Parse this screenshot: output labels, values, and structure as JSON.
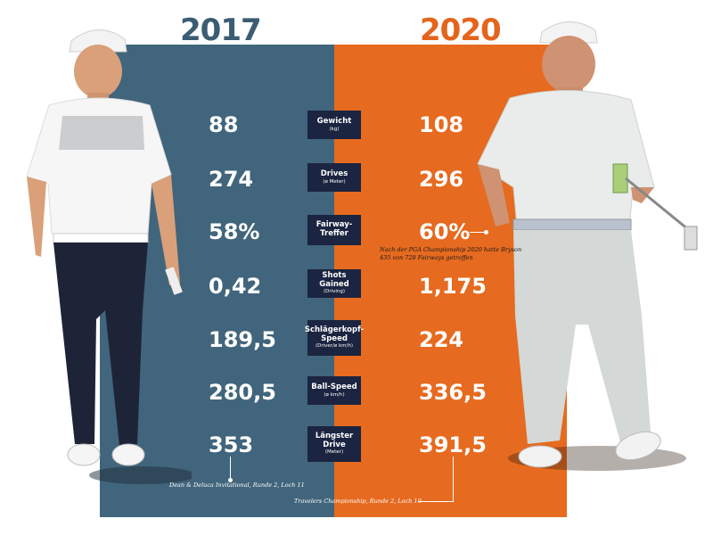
{
  "years": {
    "left": "2017",
    "right": "2020"
  },
  "colors": {
    "left_panel": "#41657c",
    "right_panel": "#e66a1f",
    "label_box": "#1b2440"
  },
  "rows": [
    {
      "label": "Gewicht",
      "sub": "(kg)",
      "v2017": "88",
      "v2020": "108"
    },
    {
      "label": "Drives",
      "sub": "(ø Meter)",
      "v2017": "274",
      "v2020": "296"
    },
    {
      "label": "Fairway-\nTreffer",
      "sub": "",
      "v2017": "58%",
      "v2020": "60%"
    },
    {
      "label": "Shots Gained",
      "sub": "(Driving)",
      "v2017": "0,42",
      "v2020": "1,175"
    },
    {
      "label": "Schlägerkopf-\nSpeed",
      "sub": "(Driver/ø km/h)",
      "v2017": "189,5",
      "v2020": "224"
    },
    {
      "label": "Ball-Speed",
      "sub": "(ø km/h)",
      "v2017": "280,5",
      "v2020": "336,5"
    },
    {
      "label": "Längster\nDrive",
      "sub": "(Meter)",
      "v2017": "353",
      "v2020": "391,5"
    }
  ],
  "notes": {
    "fairway": "Nach der PGA Championship 2020 hatte Bryson 435 von 728 Fairways getroffen",
    "drive_2017": "Dean & Deluca Invitational, Runde 2, Loch 11",
    "drive_2020": "Travelers Championship, Runde 2, Loch 10"
  },
  "icons": [
    "golfer-2017-figure",
    "golfer-2020-figure"
  ]
}
